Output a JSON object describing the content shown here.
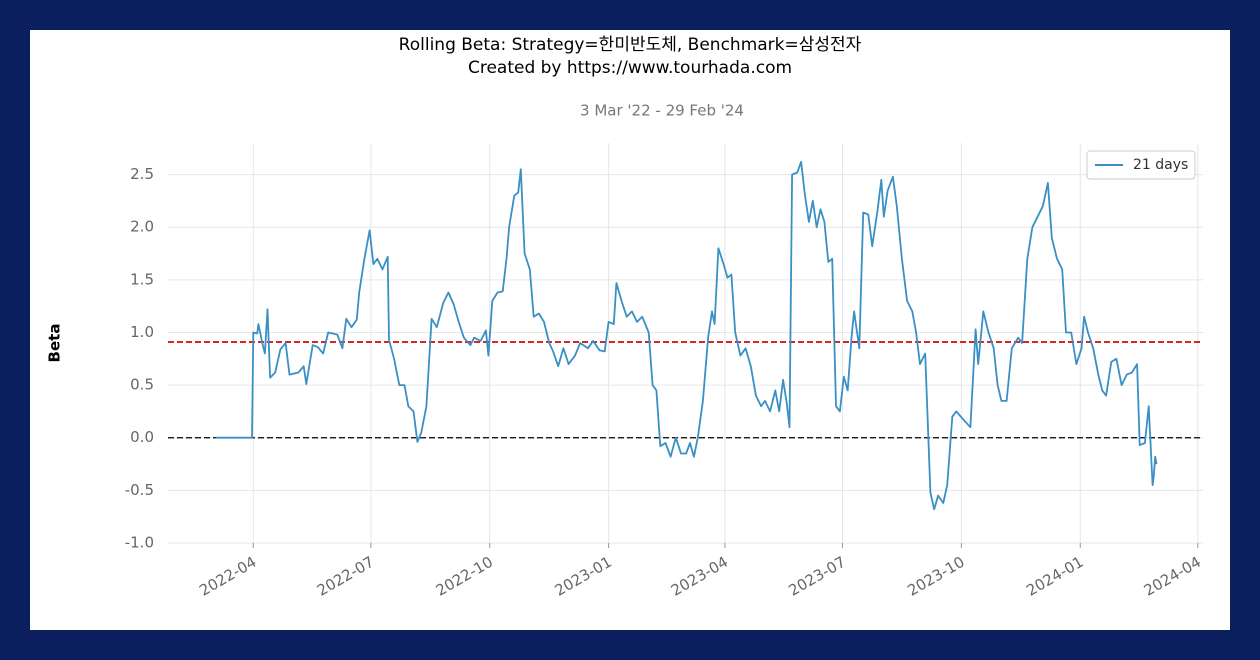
{
  "chart_data": {
    "type": "line",
    "title": "Rolling Beta: Strategy=한미반도체, Benchmark=삼성전자",
    "caption": "Created by https://www.tourhada.com",
    "subtitle": "3 Mar '22 - 29 Feb '24",
    "y_label": "Beta",
    "grid": true,
    "legend": "upper right",
    "xlim": [
      "2022-01-25",
      "2024-04-05"
    ],
    "xticks": [
      {
        "value": "2022-04-01",
        "label": "2022-04"
      },
      {
        "value": "2022-07-01",
        "label": "2022-07"
      },
      {
        "value": "2022-10-01",
        "label": "2022-10"
      },
      {
        "value": "2023-01-01",
        "label": "2023-01"
      },
      {
        "value": "2023-04-01",
        "label": "2023-04"
      },
      {
        "value": "2023-07-01",
        "label": "2023-07"
      },
      {
        "value": "2023-10-01",
        "label": "2023-10"
      },
      {
        "value": "2024-01-01",
        "label": "2024-01"
      },
      {
        "value": "2024-04-01",
        "label": "2024-04"
      }
    ],
    "ylim": [
      -1.0,
      2.8
    ],
    "yticks": [
      {
        "value": -1,
        "label": "-1.0"
      },
      -0.5,
      {
        "value": 0,
        "label": "0.0"
      },
      0.5,
      {
        "value": 1,
        "label": "1.0"
      },
      1.5,
      {
        "value": 2,
        "label": "2.0"
      },
      2.5
    ],
    "hlines": [
      {
        "value": 0.91,
        "color": "#d62728",
        "style": "dashed"
      },
      {
        "value": 0,
        "color": "#000000",
        "style": "dashed"
      }
    ],
    "x": [
      "2022-03-03",
      "2022-03-31",
      "2022-04-01",
      "2022-04-04",
      "2022-04-05",
      "2022-04-08",
      "2022-04-10",
      "2022-04-12",
      "2022-04-14",
      "2022-04-18",
      "2022-04-22",
      "2022-04-26",
      "2022-04-29",
      "2022-05-06",
      "2022-05-10",
      "2022-05-12",
      "2022-05-17",
      "2022-05-21",
      "2022-05-25",
      "2022-05-29",
      "2022-06-05",
      "2022-06-09",
      "2022-06-12",
      "2022-06-16",
      "2022-06-20",
      "2022-06-22",
      "2022-06-26",
      "2022-06-30",
      "2022-07-03",
      "2022-07-06",
      "2022-07-10",
      "2022-07-14",
      "2022-07-15",
      "2022-07-19",
      "2022-07-23",
      "2022-07-27",
      "2022-07-30",
      "2022-08-03",
      "2022-08-06",
      "2022-08-09",
      "2022-08-13",
      "2022-08-17",
      "2022-08-21",
      "2022-08-26",
      "2022-08-30",
      "2022-09-03",
      "2022-09-07",
      "2022-09-11",
      "2022-09-16",
      "2022-09-19",
      "2022-09-24",
      "2022-09-28",
      "2022-09-30",
      "2022-10-03",
      "2022-10-07",
      "2022-10-11",
      "2022-10-14",
      "2022-10-16",
      "2022-10-20",
      "2022-10-23",
      "2022-10-25",
      "2022-10-28",
      "2022-11-01",
      "2022-11-04",
      "2022-11-08",
      "2022-11-12",
      "2022-11-16",
      "2022-11-19",
      "2022-11-23",
      "2022-11-27",
      "2022-12-01",
      "2022-12-06",
      "2022-12-10",
      "2022-12-16",
      "2022-12-20",
      "2022-12-25",
      "2022-12-29",
      "2023-01-01",
      "2023-01-05",
      "2023-01-07",
      "2023-01-11",
      "2023-01-15",
      "2023-01-19",
      "2023-01-23",
      "2023-01-27",
      "2023-02-01",
      "2023-02-04",
      "2023-02-07",
      "2023-02-10",
      "2023-02-14",
      "2023-02-18",
      "2023-02-22",
      "2023-02-26",
      "2023-03-02",
      "2023-03-05",
      "2023-03-08",
      "2023-03-11",
      "2023-03-15",
      "2023-03-19",
      "2023-03-22",
      "2023-03-24",
      "2023-03-27",
      "2023-03-31",
      "2023-04-03",
      "2023-04-06",
      "2023-04-09",
      "2023-04-13",
      "2023-04-17",
      "2023-04-21",
      "2023-04-25",
      "2023-04-29",
      "2023-05-02",
      "2023-05-06",
      "2023-05-10",
      "2023-05-13",
      "2023-05-16",
      "2023-05-19",
      "2023-05-21",
      "2023-05-23",
      "2023-05-27",
      "2023-05-30",
      "2023-06-02",
      "2023-06-05",
      "2023-06-08",
      "2023-06-11",
      "2023-06-14",
      "2023-06-17",
      "2023-06-20",
      "2023-06-23",
      "2023-06-26",
      "2023-06-29",
      "2023-07-02",
      "2023-07-05",
      "2023-07-08",
      "2023-07-10",
      "2023-07-14",
      "2023-07-17",
      "2023-07-21",
      "2023-07-24",
      "2023-07-28",
      "2023-07-31",
      "2023-08-02",
      "2023-08-05",
      "2023-08-09",
      "2023-08-12",
      "2023-08-16",
      "2023-08-20",
      "2023-08-24",
      "2023-08-27",
      "2023-08-30",
      "2023-09-03",
      "2023-09-07",
      "2023-09-10",
      "2023-09-13",
      "2023-09-17",
      "2023-09-20",
      "2023-09-24",
      "2023-09-27",
      "2023-10-02",
      "2023-10-08",
      "2023-10-12",
      "2023-10-14",
      "2023-10-18",
      "2023-10-22",
      "2023-10-26",
      "2023-10-29",
      "2023-11-01",
      "2023-11-05",
      "2023-11-09",
      "2023-11-14",
      "2023-11-17",
      "2023-11-21",
      "2023-11-25",
      "2023-11-29",
      "2023-12-03",
      "2023-12-07",
      "2023-12-10",
      "2023-12-14",
      "2023-12-18",
      "2023-12-21",
      "2023-12-25",
      "2023-12-29",
      "2024-01-02",
      "2024-01-04",
      "2024-01-07",
      "2024-01-11",
      "2024-01-15",
      "2024-01-18",
      "2024-01-21",
      "2024-01-25",
      "2024-01-29",
      "2024-02-02",
      "2024-02-06",
      "2024-02-10",
      "2024-02-14",
      "2024-02-16",
      "2024-02-20",
      "2024-02-23",
      "2024-02-25",
      "2024-02-26",
      "2024-02-27",
      "2024-02-28",
      "2024-02-29"
    ],
    "series": [
      {
        "name": "21 days",
        "color": "#3a8fc4",
        "values": [
          0,
          0,
          1.0,
          0.99,
          1.08,
          0.9,
          0.8,
          1.22,
          0.57,
          0.62,
          0.84,
          0.9,
          0.6,
          0.62,
          0.68,
          0.51,
          0.88,
          0.86,
          0.8,
          1.0,
          0.98,
          0.85,
          1.13,
          1.05,
          1.12,
          1.38,
          1.7,
          1.97,
          1.65,
          1.7,
          1.6,
          1.72,
          0.93,
          0.75,
          0.5,
          0.5,
          0.3,
          0.25,
          -0.04,
          0.05,
          0.3,
          1.13,
          1.05,
          1.28,
          1.38,
          1.27,
          1.1,
          0.95,
          0.88,
          0.95,
          0.92,
          1.02,
          0.78,
          1.3,
          1.38,
          1.39,
          1.7,
          2.0,
          2.3,
          2.33,
          2.55,
          1.75,
          1.6,
          1.15,
          1.18,
          1.1,
          0.9,
          0.82,
          0.68,
          0.85,
          0.7,
          0.78,
          0.9,
          0.85,
          0.92,
          0.83,
          0.82,
          1.1,
          1.08,
          1.47,
          1.3,
          1.15,
          1.2,
          1.1,
          1.15,
          1.0,
          0.5,
          0.45,
          -0.08,
          -0.05,
          -0.18,
          0.0,
          -0.15,
          -0.15,
          -0.05,
          -0.18,
          0.0,
          0.35,
          0.95,
          1.2,
          1.08,
          1.8,
          1.65,
          1.52,
          1.55,
          1.0,
          0.78,
          0.85,
          0.68,
          0.4,
          0.3,
          0.35,
          0.25,
          0.45,
          0.25,
          0.55,
          0.32,
          0.1,
          2.5,
          2.52,
          2.62,
          2.3,
          2.05,
          2.25,
          2.0,
          2.17,
          2.05,
          1.67,
          1.7,
          0.3,
          0.25,
          0.58,
          0.45,
          0.95,
          1.2,
          0.85,
          2.14,
          2.12,
          1.82,
          2.15,
          2.45,
          2.1,
          2.35,
          2.48,
          2.2,
          1.7,
          1.3,
          1.2,
          1.0,
          0.7,
          0.8,
          -0.52,
          -0.68,
          -0.55,
          -0.62,
          -0.45,
          0.2,
          0.25,
          0.18,
          0.1,
          1.03,
          0.7,
          1.2,
          1.0,
          0.85,
          0.5,
          0.35,
          0.35,
          0.85,
          0.95,
          0.9,
          1.7,
          2.0,
          2.1,
          2.2,
          2.42,
          1.9,
          1.7,
          1.6,
          1.0,
          1.0,
          0.7,
          0.85,
          1.15,
          1.0,
          0.85,
          0.6,
          0.45,
          0.4,
          0.72,
          0.75,
          0.5,
          0.6,
          0.62,
          0.7,
          -0.07,
          -0.05,
          0.3,
          -0.2,
          -0.45,
          -0.35,
          -0.18,
          -0.25
        ]
      }
    ]
  }
}
